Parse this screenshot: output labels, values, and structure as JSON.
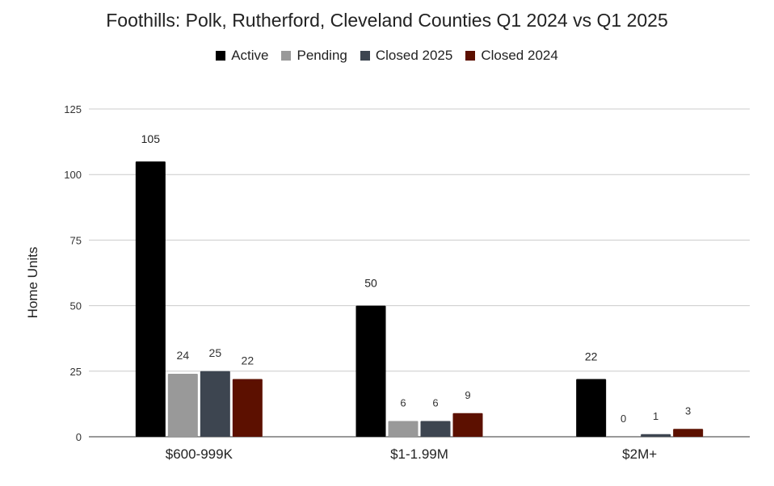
{
  "chart_data": {
    "type": "bar",
    "title": "Foothills: Polk, Rutherford, Cleveland Counties Q1 2024 vs Q1 2025",
    "xlabel": "",
    "ylabel": "Home Units",
    "ylim": [
      0,
      125
    ],
    "yticks": [
      0,
      25,
      50,
      75,
      100,
      125
    ],
    "grid": true,
    "legend_position": "top",
    "categories": [
      "$600-999K",
      "$1-1.99M",
      "$2M+"
    ],
    "series": [
      {
        "name": "Active",
        "color": "#000000",
        "values": [
          105,
          50,
          22
        ]
      },
      {
        "name": "Pending",
        "color": "#999999",
        "values": [
          24,
          6,
          0
        ]
      },
      {
        "name": "Closed 2025",
        "color": "#3d4550",
        "values": [
          25,
          6,
          1
        ]
      },
      {
        "name": "Closed 2024",
        "color": "#5c1000",
        "values": [
          22,
          9,
          3
        ]
      }
    ]
  }
}
